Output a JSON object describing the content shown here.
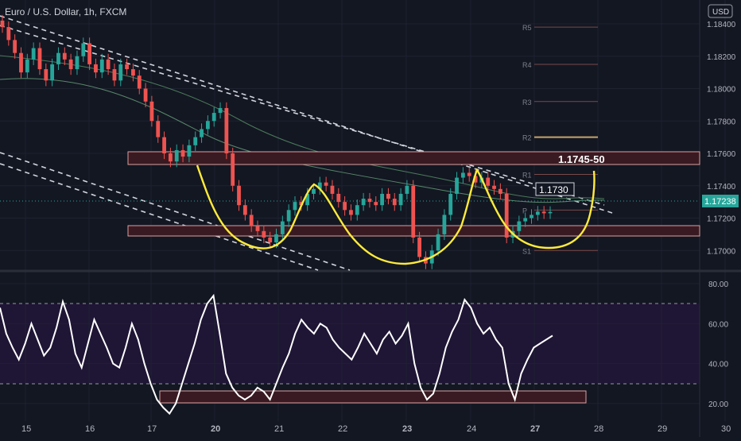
{
  "header": {
    "symbol_title": "Euro / U.S. Dollar, 1h, FXCM",
    "currency": "USD"
  },
  "chart_data": [
    {
      "type": "line",
      "name": "price-panel",
      "ylim": [
        1.168,
        1.185
      ],
      "price_ticks": [
        "1.18400",
        "1.18200",
        "1.18000",
        "1.17800",
        "1.17600",
        "1.17400",
        "1.17200",
        "1.17000",
        "1.16800"
      ],
      "price_tick_values": [
        1.184,
        1.182,
        1.18,
        1.178,
        1.176,
        1.174,
        1.172,
        1.17,
        1.168
      ],
      "current_price": {
        "label": "1.17238",
        "value": 1.17238
      },
      "pivot_levels": [
        {
          "label": "R5",
          "value": 1.1838
        },
        {
          "label": "R4",
          "value": 1.1815
        },
        {
          "label": "R3",
          "value": 1.1792
        },
        {
          "label": "R2",
          "value": 1.177
        },
        {
          "label": "R1",
          "value": 1.1747
        },
        {
          "label": "P",
          "value": 1.1725
        },
        {
          "label": "S1",
          "value": 1.17
        }
      ],
      "annotations": [
        {
          "label": "1.1745-50",
          "zone": [
            1.1745,
            1.1755
          ]
        },
        {
          "label": "1.1730",
          "value": 1.173
        }
      ],
      "support_zone": [
        1.17,
        1.1707
      ],
      "close_series": [
        1.1838,
        1.183,
        1.1822,
        1.181,
        1.1818,
        1.1825,
        1.1812,
        1.1805,
        1.1815,
        1.1822,
        1.1818,
        1.1812,
        1.182,
        1.1828,
        1.1815,
        1.181,
        1.1818,
        1.1812,
        1.1805,
        1.1815,
        1.1812,
        1.1808,
        1.18,
        1.1792,
        1.178,
        1.177,
        1.176,
        1.1755,
        1.1762,
        1.1758,
        1.1765,
        1.177,
        1.1775,
        1.178,
        1.1785,
        1.1788,
        1.176,
        1.174,
        1.1728,
        1.1722,
        1.1715,
        1.1712,
        1.1708,
        1.1705,
        1.171,
        1.1718,
        1.1725,
        1.173,
        1.1728,
        1.1735,
        1.1738,
        1.1742,
        1.174,
        1.1735,
        1.173,
        1.1725,
        1.1722,
        1.1728,
        1.1732,
        1.173,
        1.1728,
        1.1735,
        1.1732,
        1.1728,
        1.1735,
        1.174,
        1.1708,
        1.1696,
        1.1692,
        1.17,
        1.171,
        1.1722,
        1.1735,
        1.1745,
        1.1748,
        1.1746,
        1.1742,
        1.1745,
        1.174,
        1.1738,
        1.1735,
        1.1708,
        1.1712,
        1.1718,
        1.172,
        1.1722,
        1.1724,
        1.1723,
        1.17238
      ],
      "x_day_labels": [
        "15",
        "16",
        "17",
        "20",
        "21",
        "22",
        "23",
        "24",
        "27",
        "28",
        "29",
        "30"
      ]
    },
    {
      "type": "line",
      "name": "oscillator-panel",
      "ylim": [
        15,
        85
      ],
      "ticks": [
        "80.00",
        "60.00",
        "40.00",
        "20.00"
      ],
      "tick_values": [
        80,
        60,
        40,
        20
      ],
      "band": [
        30,
        70
      ],
      "values": [
        68,
        55,
        48,
        42,
        50,
        60,
        52,
        44,
        48,
        58,
        71,
        62,
        45,
        38,
        50,
        62,
        55,
        48,
        40,
        38,
        48,
        60,
        52,
        40,
        30,
        22,
        18,
        15,
        20,
        30,
        40,
        50,
        62,
        70,
        74,
        55,
        35,
        28,
        24,
        22,
        24,
        28,
        26,
        22,
        30,
        38,
        45,
        55,
        62,
        58,
        55,
        60,
        58,
        52,
        48,
        45,
        42,
        48,
        55,
        50,
        45,
        52,
        56,
        50,
        54,
        60,
        40,
        28,
        22,
        25,
        35,
        48,
        56,
        62,
        72,
        68,
        60,
        55,
        58,
        52,
        48,
        30,
        22,
        35,
        42,
        48,
        50,
        52,
        54
      ],
      "highlight_zone": [
        20.5,
        26
      ]
    }
  ]
}
